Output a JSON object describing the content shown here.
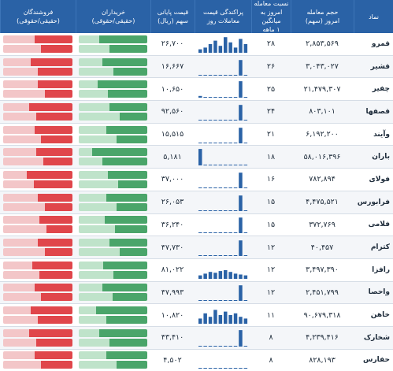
{
  "header": {
    "symbol": "نماد",
    "volume": [
      "حجم معامله",
      "امروز (سهم)"
    ],
    "ratio": [
      "نسبت معامله",
      "امروز به میانگین",
      "۱ ماهه"
    ],
    "distribution": [
      "پراکندگی قیمت",
      "معاملات روز"
    ],
    "price": [
      "قیمت پایانی",
      "سهم (ریال)"
    ],
    "buyers": [
      "خریداران",
      "(حقیقی/حقوقی)"
    ],
    "sellers": [
      "فروشندگان",
      "(حقیقی/حقوقی)"
    ]
  },
  "colors": {
    "header_bg": "#2a62a6",
    "buy": "#4aa56a",
    "sell": "#e0464b"
  },
  "rows": [
    {
      "symbol": "قمرو",
      "volume": "۲,۸۵۳,۵۶۹",
      "ratio": "۲۸",
      "price": "۲۶,۷۰۰",
      "buy": 0.7,
      "sell": 0.55,
      "dist": [
        0.2,
        0.3,
        0.5,
        0.7,
        0.4,
        0.9,
        0.6,
        0.3,
        0.8,
        0.5
      ]
    },
    {
      "symbol": "قشیر",
      "volume": "۳,۰۴۳,۰۲۷",
      "ratio": "۲۶",
      "price": "۱۶,۶۶۷",
      "buy": 0.65,
      "sell": 0.6,
      "dist": [
        0,
        0,
        0,
        0,
        0,
        0,
        0,
        0,
        0.9,
        0
      ]
    },
    {
      "symbol": "چفیر",
      "volume": "۲۱,۴۷۹,۳۰۷",
      "ratio": "۲۵",
      "price": "۱۰,۶۵۰",
      "buy": 0.72,
      "sell": 0.5,
      "dist": [
        0.1,
        0,
        0,
        0,
        0,
        0,
        0,
        0,
        0.95,
        0
      ]
    },
    {
      "symbol": "قصفها",
      "volume": "۸۰۳,۱۰۱",
      "ratio": "۲۴",
      "price": "۹۲,۵۶۰",
      "buy": 0.55,
      "sell": 0.62,
      "dist": [
        0,
        0,
        0,
        0,
        0,
        0,
        0,
        0,
        0.9,
        0
      ]
    },
    {
      "symbol": "وآیند",
      "volume": "۶,۱۹۲,۲۰۰",
      "ratio": "۲۱",
      "price": "۱۵,۵۱۵",
      "buy": 0.6,
      "sell": 0.55,
      "dist": [
        0,
        0,
        0,
        0,
        0,
        0,
        0,
        0,
        0.9,
        0
      ]
    },
    {
      "symbol": "باران",
      "volume": "۵۸,۰۱۶,۳۹۶",
      "ratio": "۱۸",
      "price": "۵,۱۸۱",
      "buy": 0.8,
      "sell": 0.52,
      "dist": [
        0.95,
        0,
        0,
        0,
        0,
        0,
        0,
        0,
        0,
        0
      ]
    },
    {
      "symbol": "فولای",
      "volume": "۷۸۲,۸۹۴",
      "ratio": "۱۶",
      "price": "۳۷,۰۰۰",
      "buy": 0.58,
      "sell": 0.66,
      "dist": [
        0,
        0,
        0,
        0,
        0,
        0,
        0,
        0,
        0.9,
        0
      ]
    },
    {
      "symbol": "فرابورس",
      "volume": "۴,۴۷۵,۵۲۱",
      "ratio": "۱۵",
      "price": "۲۶,۰۵۳",
      "buy": 0.6,
      "sell": 0.5,
      "dist": [
        0,
        0,
        0,
        0,
        0,
        0,
        0,
        0,
        0.9,
        0
      ]
    },
    {
      "symbol": "فلامی",
      "volume": "۳۷۲,۷۶۹",
      "ratio": "۱۵",
      "price": "۳۶,۲۴۰",
      "buy": 0.62,
      "sell": 0.48,
      "dist": [
        0,
        0,
        0,
        0,
        0,
        0,
        0,
        0,
        0.9,
        0
      ]
    },
    {
      "symbol": "کترام",
      "volume": "۴۰,۴۵۷",
      "ratio": "۱۲",
      "price": "۴۷,۷۳۰",
      "buy": 0.55,
      "sell": 0.5,
      "dist": [
        0,
        0,
        0,
        0,
        0,
        0,
        0,
        0,
        0.9,
        0
      ]
    },
    {
      "symbol": "رافزا",
      "volume": "۳,۴۹۷,۳۹۰",
      "ratio": "۱۲",
      "price": "۸۱,۰۲۲",
      "buy": 0.64,
      "sell": 0.58,
      "dist": [
        0.2,
        0.3,
        0.4,
        0.35,
        0.45,
        0.5,
        0.4,
        0.3,
        0.25,
        0.2
      ]
    },
    {
      "symbol": "واحصا",
      "volume": "۲,۴۵۱,۷۹۹",
      "ratio": "۱۲",
      "price": "۴۷,۹۹۳",
      "buy": 0.66,
      "sell": 0.55,
      "dist": [
        0,
        0,
        0,
        0,
        0,
        0,
        0,
        0,
        0.9,
        0
      ]
    },
    {
      "symbol": "خاهن",
      "volume": "۹۰,۶۷۹,۳۱۸",
      "ratio": "۱۱",
      "price": "۱۰,۸۲۰",
      "buy": 0.75,
      "sell": 0.6,
      "dist": [
        0.3,
        0.6,
        0.4,
        0.8,
        0.5,
        0.7,
        0.5,
        0.6,
        0.4,
        0.3
      ]
    },
    {
      "symbol": "شخارک",
      "volume": "۴,۲۳۹,۴۱۶",
      "ratio": "۸",
      "price": "۴۳,۴۱۰",
      "buy": 0.7,
      "sell": 0.62,
      "dist": [
        0,
        0,
        0,
        0,
        0,
        0,
        0,
        0,
        0.95,
        0
      ]
    },
    {
      "symbol": "حفارس",
      "volume": "۸۲۸,۱۹۳",
      "ratio": "۸",
      "price": "۴,۵۰۲",
      "buy": 0.6,
      "sell": 0.55,
      "dist": [
        0,
        0,
        0,
        0,
        0,
        0,
        0,
        0,
        0,
        0
      ]
    }
  ]
}
